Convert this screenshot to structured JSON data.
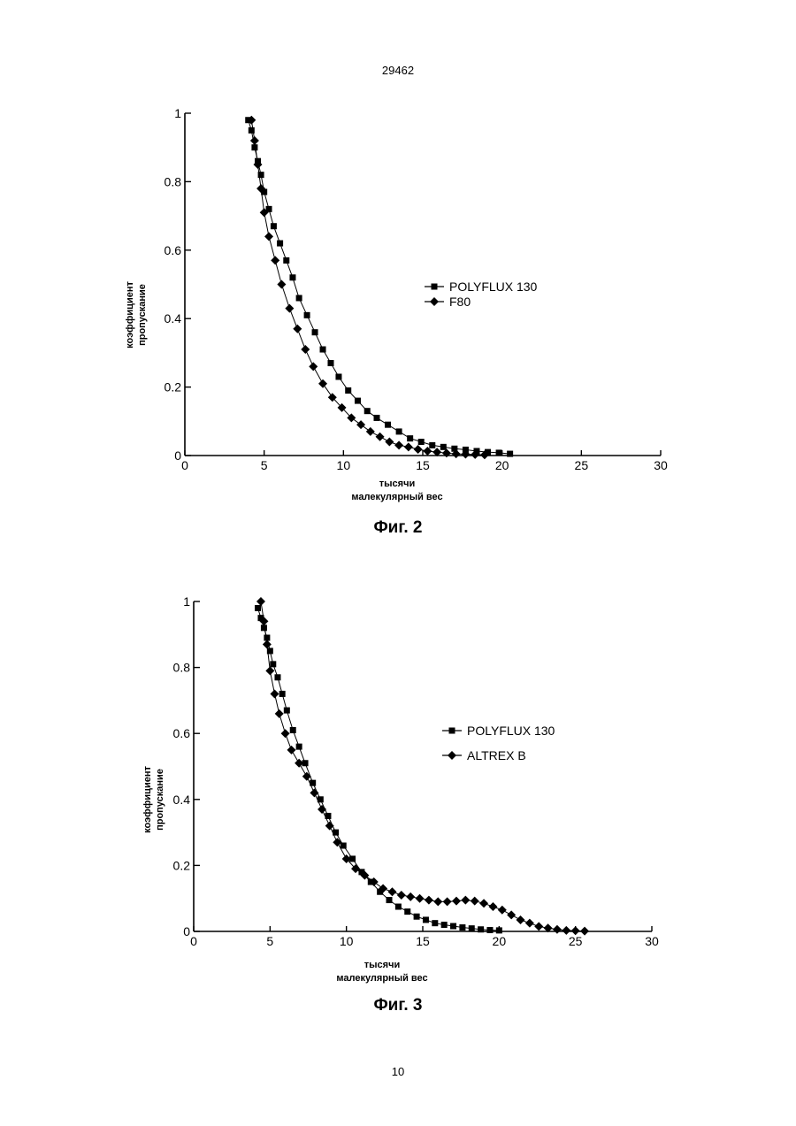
{
  "page": {
    "header_number": "29462",
    "footer_number": "10"
  },
  "figures": [
    {
      "caption": "Фиг. 2"
    },
    {
      "caption": "Фиг. 3"
    }
  ],
  "chart_data": [
    {
      "type": "line",
      "xlabel": "тысячи малекулярный вес",
      "xlabel_lines": [
        "тысячи",
        "малекулярный вес"
      ],
      "ylabel": "коэффициент пропускание",
      "ylabel_lines": [
        "коэффициент",
        "пропускание"
      ],
      "xlim": [
        0,
        30
      ],
      "ylim": [
        0,
        1
      ],
      "x_ticks": [
        0,
        5,
        10,
        15,
        20,
        25,
        30
      ],
      "x_tick_labels": [
        "0",
        "5",
        "10",
        "15",
        "20",
        "25",
        "30"
      ],
      "y_ticks": [
        0,
        0.2,
        0.4,
        0.6,
        0.8,
        1
      ],
      "y_tick_labels": [
        "0",
        "0.2",
        "0.4",
        "0.6",
        "0.8",
        "1"
      ],
      "grid": false,
      "legend_position": "center-right",
      "series": [
        {
          "name": "POLYFLUX 130",
          "marker": "square",
          "x": [
            4.0,
            4.2,
            4.4,
            4.6,
            4.8,
            5.0,
            5.3,
            5.6,
            6.0,
            6.4,
            6.8,
            7.2,
            7.7,
            8.2,
            8.7,
            9.2,
            9.7,
            10.3,
            10.9,
            11.5,
            12.1,
            12.8,
            13.5,
            14.2,
            14.9,
            15.6,
            16.3,
            17.0,
            17.7,
            18.4,
            19.1,
            19.8,
            20.5
          ],
          "y": [
            0.98,
            0.95,
            0.9,
            0.86,
            0.82,
            0.77,
            0.72,
            0.67,
            0.62,
            0.57,
            0.52,
            0.46,
            0.41,
            0.36,
            0.31,
            0.27,
            0.23,
            0.19,
            0.16,
            0.13,
            0.11,
            0.09,
            0.07,
            0.05,
            0.04,
            0.03,
            0.025,
            0.02,
            0.017,
            0.013,
            0.01,
            0.008,
            0.005
          ]
        },
        {
          "name": "F80",
          "marker": "diamond",
          "x": [
            4.2,
            4.4,
            4.6,
            4.8,
            5.0,
            5.3,
            5.7,
            6.1,
            6.6,
            7.1,
            7.6,
            8.1,
            8.7,
            9.3,
            9.9,
            10.5,
            11.1,
            11.7,
            12.3,
            12.9,
            13.5,
            14.1,
            14.7,
            15.3,
            15.9,
            16.5,
            17.1,
            17.7,
            18.3,
            18.9
          ],
          "y": [
            0.98,
            0.92,
            0.85,
            0.78,
            0.71,
            0.64,
            0.57,
            0.5,
            0.43,
            0.37,
            0.31,
            0.26,
            0.21,
            0.17,
            0.14,
            0.11,
            0.09,
            0.07,
            0.055,
            0.04,
            0.03,
            0.025,
            0.018,
            0.013,
            0.01,
            0.007,
            0.005,
            0.004,
            0.003,
            0.002
          ]
        }
      ]
    },
    {
      "type": "line",
      "xlabel": "тысячи малекулярный вес",
      "xlabel_lines": [
        "тысячи",
        "малекулярный вес"
      ],
      "ylabel": "коэффициент пропускание",
      "ylabel_lines": [
        "коэффициент",
        "пропускание"
      ],
      "xlim": [
        0,
        30
      ],
      "ylim": [
        0,
        1
      ],
      "x_ticks": [
        0,
        5,
        10,
        15,
        20,
        25,
        30
      ],
      "x_tick_labels": [
        "0",
        "5",
        "10",
        "15",
        "20",
        "25",
        "30"
      ],
      "y_ticks": [
        0,
        0.2,
        0.4,
        0.6,
        0.8,
        1
      ],
      "y_tick_labels": [
        "0",
        "0.2",
        "0.4",
        "0.6",
        "0.8",
        "1"
      ],
      "grid": false,
      "legend_position": "center-right",
      "series": [
        {
          "name": "POLYFLUX 130",
          "marker": "square",
          "x": [
            4.2,
            4.4,
            4.6,
            4.8,
            5.0,
            5.2,
            5.5,
            5.8,
            6.1,
            6.5,
            6.9,
            7.3,
            7.8,
            8.3,
            8.8,
            9.3,
            9.8,
            10.4,
            11.0,
            11.6,
            12.2,
            12.8,
            13.4,
            14.0,
            14.6,
            15.2,
            15.8,
            16.4,
            17.0,
            17.6,
            18.2,
            18.8,
            19.4,
            20.0
          ],
          "y": [
            0.98,
            0.95,
            0.92,
            0.89,
            0.85,
            0.81,
            0.77,
            0.72,
            0.67,
            0.61,
            0.56,
            0.51,
            0.45,
            0.4,
            0.35,
            0.3,
            0.26,
            0.22,
            0.18,
            0.15,
            0.12,
            0.095,
            0.075,
            0.06,
            0.045,
            0.035,
            0.025,
            0.02,
            0.016,
            0.012,
            0.009,
            0.006,
            0.004,
            0.003
          ]
        },
        {
          "name": "ALTREX B",
          "marker": "diamond",
          "x": [
            4.4,
            4.6,
            4.8,
            5.0,
            5.3,
            5.6,
            6.0,
            6.4,
            6.9,
            7.4,
            7.9,
            8.4,
            8.9,
            9.4,
            10.0,
            10.6,
            11.2,
            11.8,
            12.4,
            13.0,
            13.6,
            14.2,
            14.8,
            15.4,
            16.0,
            16.6,
            17.2,
            17.8,
            18.4,
            19.0,
            19.6,
            20.2,
            20.8,
            21.4,
            22.0,
            22.6,
            23.2,
            23.8,
            24.4,
            25.0,
            25.6
          ],
          "y": [
            1.0,
            0.94,
            0.87,
            0.79,
            0.72,
            0.66,
            0.6,
            0.55,
            0.51,
            0.47,
            0.42,
            0.37,
            0.32,
            0.27,
            0.22,
            0.19,
            0.17,
            0.15,
            0.13,
            0.12,
            0.11,
            0.105,
            0.1,
            0.095,
            0.09,
            0.09,
            0.092,
            0.095,
            0.092,
            0.085,
            0.075,
            0.065,
            0.05,
            0.035,
            0.025,
            0.015,
            0.01,
            0.006,
            0.003,
            0.002,
            0.001
          ]
        }
      ]
    }
  ]
}
